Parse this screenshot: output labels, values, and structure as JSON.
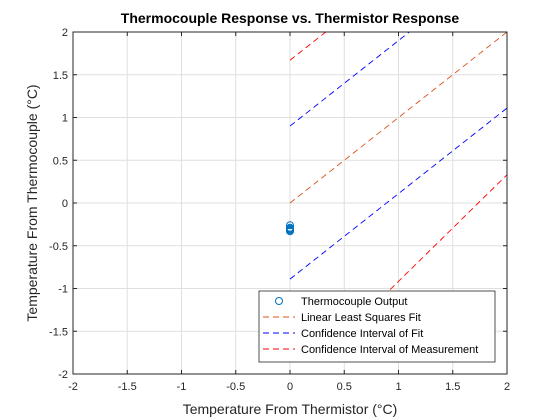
{
  "chart_data": {
    "type": "scatter",
    "title": "Thermocouple Response vs. Thermistor Response",
    "xlabel": "Temperature From Thermistor (°C)",
    "ylabel": "Temperature From Thermocouple (°C)",
    "xlim": [
      -2,
      2
    ],
    "ylim": [
      -2,
      2
    ],
    "xticks": [
      -2,
      -1.5,
      -1,
      -0.5,
      0,
      0.5,
      1,
      1.5,
      2
    ],
    "yticks": [
      -2,
      -1.5,
      -1,
      -0.5,
      0,
      0.5,
      1,
      1.5,
      2
    ],
    "xtick_labels": [
      "-2",
      "-1.5",
      "-1",
      "-0.5",
      "0",
      "0.5",
      "1",
      "1.5",
      "2"
    ],
    "ytick_labels": [
      "-2",
      "-1.5",
      "-1",
      "-0.5",
      "0",
      "0.5",
      "1",
      "1.5",
      "2"
    ],
    "grid": true,
    "legend_position": "bottom-right",
    "series": [
      {
        "name": "Thermocouple Output",
        "kind": "markers",
        "marker": "circle",
        "color": "#0072BD",
        "x": [
          0,
          0,
          0,
          0,
          0,
          0
        ],
        "y": [
          -0.26,
          -0.29,
          -0.31,
          -0.32,
          -0.33,
          -0.3
        ]
      },
      {
        "name": "Linear Least Squares Fit",
        "kind": "dashed-line",
        "color": "#D95319",
        "x": [
          0,
          2
        ],
        "y": [
          0,
          2
        ]
      },
      {
        "name": "Confidence Interval of Fit",
        "kind": "dashed-line",
        "color": "#0000FF",
        "segments": [
          {
            "x": [
              0,
              1.1
            ],
            "y": [
              0.9,
              2
            ]
          },
          {
            "x": [
              0,
              2
            ],
            "y": [
              -0.89,
              1.11
            ]
          }
        ]
      },
      {
        "name": "Confidence Interval of Measurement",
        "kind": "dashed-line",
        "color": "#FF0000",
        "segments": [
          {
            "x": [
              0,
              0.33
            ],
            "y": [
              1.67,
              2
            ]
          },
          {
            "x": [
              0.66,
              2
            ],
            "y": [
              -1.34,
              0.33
            ]
          }
        ]
      }
    ]
  }
}
